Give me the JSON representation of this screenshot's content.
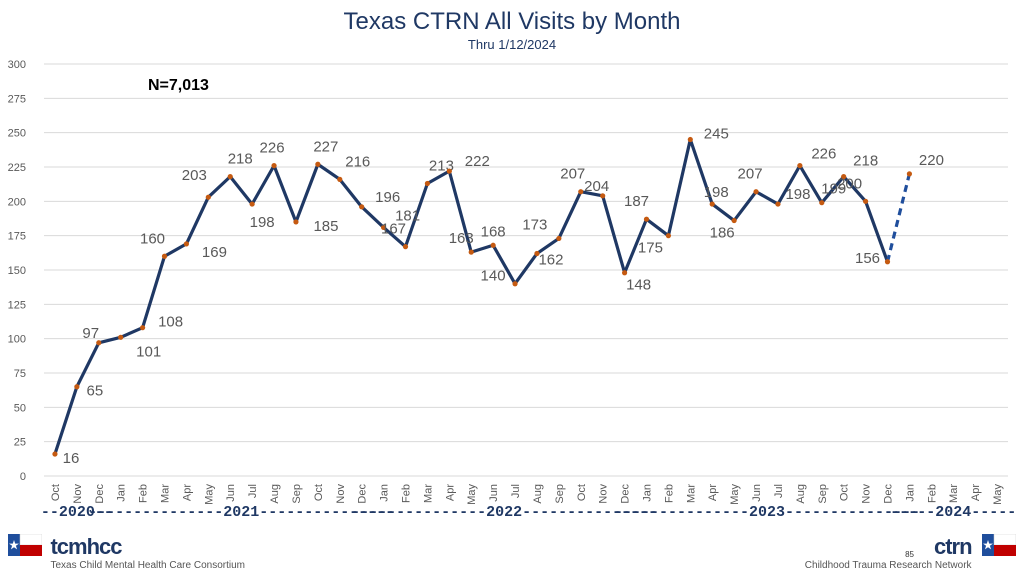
{
  "chart_data": {
    "type": "line",
    "title": "Texas CTRN All Visits by Month",
    "subtitle": "Thru 1/12/2024",
    "annotation": "N=7,013",
    "ylim": [
      0,
      300
    ],
    "yticks": [
      0,
      25,
      50,
      75,
      100,
      125,
      150,
      175,
      200,
      225,
      250,
      275,
      300
    ],
    "categories": [
      "Oct",
      "Nov",
      "Dec",
      "Jan",
      "Feb",
      "Mar",
      "Apr",
      "May",
      "Jun",
      "Jul",
      "Aug",
      "Sep",
      "Oct",
      "Nov",
      "Dec",
      "Jan",
      "Feb",
      "Mar",
      "Apr",
      "May",
      "Jun",
      "Jul",
      "Aug",
      "Sep",
      "Oct",
      "Nov",
      "Dec",
      "Jan",
      "Feb",
      "Mar",
      "Apr",
      "May",
      "Jun",
      "Jul",
      "Aug",
      "Sep",
      "Oct",
      "Nov",
      "Dec",
      "Jan",
      "Feb",
      "Mar",
      "Apr",
      "May"
    ],
    "values": [
      16,
      65,
      97,
      101,
      108,
      160,
      169,
      203,
      218,
      198,
      226,
      185,
      227,
      216,
      196,
      181,
      167,
      213,
      222,
      163,
      168,
      140,
      162,
      173,
      207,
      204,
      148,
      187,
      175,
      245,
      198,
      186,
      207,
      198,
      226,
      199,
      218,
      200,
      156,
      220,
      null,
      null,
      null,
      null
    ],
    "solid_until_index": 38,
    "dashed_from_index": 38,
    "year_groups": [
      {
        "label": "--2020--"
      },
      {
        "label": "---------------2021---------------"
      },
      {
        "label": "---------------2022---------------"
      },
      {
        "label": "---------------2023---------------"
      },
      {
        "label": "-----2024-----"
      }
    ],
    "colors": {
      "line": "#1f3864",
      "dash": "#1f4e9c",
      "marker": "#c55a11",
      "grid": "#d9d9d9",
      "text": "#595959"
    }
  },
  "footer": {
    "left_brand": "tcmhcc",
    "left_sub": "Texas Child Mental Health Care Consortium",
    "right_brand": "ctrn",
    "right_sub": "Childhood Trauma Research Network",
    "page_number": "85"
  }
}
